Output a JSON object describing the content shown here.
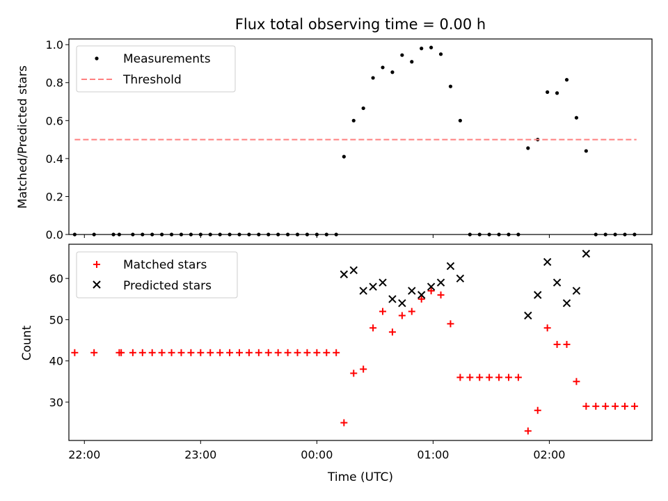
{
  "chart_data": [
    {
      "type": "scatter",
      "title": "Flux total observing time = 0.00 h",
      "xlabel": "",
      "ylabel": "Matched/Predicted stars",
      "ylim": [
        0,
        1.03
      ],
      "yticks": [
        "0.0",
        "0.2",
        "0.4",
        "0.6",
        "0.8",
        "1.0"
      ],
      "grid": false,
      "legend_position": "upper-left",
      "series": [
        {
          "name": "Measurements",
          "marker": "dot",
          "color": "#000000",
          "points": [
            [
              "21:55",
              0
            ],
            [
              "22:05",
              0
            ],
            [
              "22:15",
              0
            ],
            [
              "22:18",
              0
            ],
            [
              "22:25",
              0
            ],
            [
              "22:30",
              0
            ],
            [
              "22:35",
              0
            ],
            [
              "22:40",
              0
            ],
            [
              "22:45",
              0
            ],
            [
              "22:50",
              0
            ],
            [
              "22:55",
              0
            ],
            [
              "23:00",
              0
            ],
            [
              "23:05",
              0
            ],
            [
              "23:10",
              0
            ],
            [
              "23:15",
              0
            ],
            [
              "23:20",
              0
            ],
            [
              "23:25",
              0
            ],
            [
              "23:30",
              0
            ],
            [
              "23:35",
              0
            ],
            [
              "23:40",
              0
            ],
            [
              "23:45",
              0
            ],
            [
              "23:50",
              0
            ],
            [
              "23:55",
              0
            ],
            [
              "00:00",
              0
            ],
            [
              "00:05",
              0
            ],
            [
              "00:10",
              0
            ],
            [
              "00:14",
              0.41
            ],
            [
              "00:19",
              0.6
            ],
            [
              "00:24",
              0.665
            ],
            [
              "00:29",
              0.825
            ],
            [
              "00:34",
              0.88
            ],
            [
              "00:39",
              0.855
            ],
            [
              "00:44",
              0.945
            ],
            [
              "00:49",
              0.91
            ],
            [
              "00:54",
              0.98
            ],
            [
              "00:59",
              0.985
            ],
            [
              "01:04",
              0.95
            ],
            [
              "01:09",
              0.78
            ],
            [
              "01:14",
              0.6
            ],
            [
              "01:19",
              0
            ],
            [
              "01:24",
              0
            ],
            [
              "01:29",
              0
            ],
            [
              "01:34",
              0
            ],
            [
              "01:39",
              0
            ],
            [
              "01:44",
              0
            ],
            [
              "01:49",
              0.455
            ],
            [
              "01:54",
              0.5
            ],
            [
              "01:59",
              0.75
            ],
            [
              "02:04",
              0.745
            ],
            [
              "02:09",
              0.815
            ],
            [
              "02:14",
              0.615
            ],
            [
              "02:19",
              0.44
            ],
            [
              "02:24",
              0
            ],
            [
              "02:29",
              0
            ],
            [
              "02:34",
              0
            ],
            [
              "02:39",
              0
            ],
            [
              "02:44",
              0
            ]
          ]
        },
        {
          "name": "Threshold",
          "marker": "dashed-line",
          "color": "#ff7f7f",
          "points": [
            [
              "21:55",
              0.5
            ],
            [
              "02:45",
              0.5
            ]
          ]
        }
      ]
    },
    {
      "type": "scatter",
      "title": "",
      "xlabel": "Time (UTC)",
      "ylabel": "Count",
      "ylim": [
        20.7,
        68.3
      ],
      "yticks": [
        "30",
        "40",
        "50",
        "60"
      ],
      "xticks": [
        "22:00",
        "23:00",
        "00:00",
        "01:00",
        "02:00"
      ],
      "grid": false,
      "legend_position": "upper-left",
      "series": [
        {
          "name": "Matched stars",
          "marker": "plus",
          "color": "#ff0000",
          "points": [
            [
              "21:55",
              42
            ],
            [
              "22:05",
              42
            ],
            [
              "22:18",
              42
            ],
            [
              "22:19",
              42
            ],
            [
              "22:25",
              42
            ],
            [
              "22:30",
              42
            ],
            [
              "22:35",
              42
            ],
            [
              "22:40",
              42
            ],
            [
              "22:45",
              42
            ],
            [
              "22:50",
              42
            ],
            [
              "22:55",
              42
            ],
            [
              "23:00",
              42
            ],
            [
              "23:05",
              42
            ],
            [
              "23:10",
              42
            ],
            [
              "23:15",
              42
            ],
            [
              "23:20",
              42
            ],
            [
              "23:25",
              42
            ],
            [
              "23:30",
              42
            ],
            [
              "23:35",
              42
            ],
            [
              "23:40",
              42
            ],
            [
              "23:45",
              42
            ],
            [
              "23:50",
              42
            ],
            [
              "23:55",
              42
            ],
            [
              "00:00",
              42
            ],
            [
              "00:05",
              42
            ],
            [
              "00:10",
              42
            ],
            [
              "00:14",
              25
            ],
            [
              "00:19",
              37
            ],
            [
              "00:24",
              38
            ],
            [
              "00:29",
              48
            ],
            [
              "00:34",
              52
            ],
            [
              "00:39",
              47
            ],
            [
              "00:44",
              51
            ],
            [
              "00:49",
              52
            ],
            [
              "00:54",
              55
            ],
            [
              "00:59",
              57
            ],
            [
              "01:04",
              56
            ],
            [
              "01:09",
              49
            ],
            [
              "01:14",
              36
            ],
            [
              "01:19",
              36
            ],
            [
              "01:24",
              36
            ],
            [
              "01:29",
              36
            ],
            [
              "01:34",
              36
            ],
            [
              "01:39",
              36
            ],
            [
              "01:44",
              36
            ],
            [
              "01:49",
              23
            ],
            [
              "01:54",
              28
            ],
            [
              "01:59",
              48
            ],
            [
              "02:04",
              44
            ],
            [
              "02:09",
              44
            ],
            [
              "02:14",
              35
            ],
            [
              "02:19",
              29
            ],
            [
              "02:24",
              29
            ],
            [
              "02:29",
              29
            ],
            [
              "02:34",
              29
            ],
            [
              "02:39",
              29
            ],
            [
              "02:44",
              29
            ]
          ]
        },
        {
          "name": "Predicted stars",
          "marker": "x",
          "color": "#000000",
          "points": [
            [
              "00:14",
              61
            ],
            [
              "00:19",
              62
            ],
            [
              "00:24",
              57
            ],
            [
              "00:29",
              58
            ],
            [
              "00:34",
              59
            ],
            [
              "00:39",
              55
            ],
            [
              "00:44",
              54
            ],
            [
              "00:49",
              57
            ],
            [
              "00:54",
              56
            ],
            [
              "00:59",
              58
            ],
            [
              "01:04",
              59
            ],
            [
              "01:09",
              63
            ],
            [
              "01:14",
              60
            ],
            [
              "01:49",
              51
            ],
            [
              "01:54",
              56
            ],
            [
              "01:59",
              64
            ],
            [
              "02:04",
              59
            ],
            [
              "02:09",
              54
            ],
            [
              "02:14",
              57
            ],
            [
              "02:19",
              66
            ]
          ]
        }
      ]
    }
  ]
}
